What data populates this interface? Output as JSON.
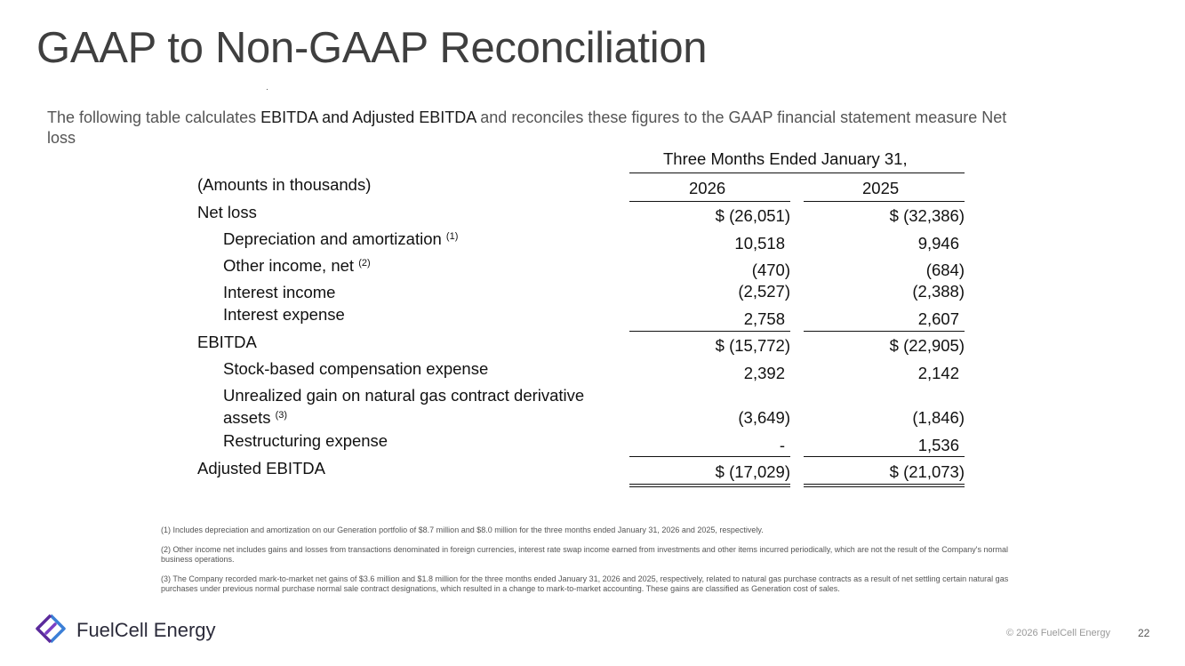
{
  "slide": {
    "title": "GAAP to Non-GAAP Reconciliation",
    "intro_pre": "The following table calculates ",
    "intro_bold": "EBITDA and Adjusted EBITDA",
    "intro_post": " and reconciles these figures to the GAAP financial statement measure Net loss",
    "page_number": "22"
  },
  "table": {
    "period_header": "Three Months Ended January 31,",
    "amounts_label": "(Amounts in thousands)",
    "years": [
      "2026",
      "2025"
    ],
    "rows": [
      {
        "label": "Net loss",
        "note": "",
        "v2026": "$ (26,051)",
        "v2025": "$ (32,386)"
      },
      {
        "label": "Depreciation and amortization",
        "note": "(1)",
        "v2026": "10,518",
        "v2025": "9,946"
      },
      {
        "label": "Other income, net",
        "note": "(2)",
        "v2026": "(470)",
        "v2025": "(684)"
      },
      {
        "label": "Interest income",
        "note": "",
        "v2026": "(2,527)",
        "v2025": "(2,388)"
      },
      {
        "label": "Interest expense",
        "note": "",
        "v2026": "2,758",
        "v2025": "2,607"
      },
      {
        "label": "EBITDA",
        "note": "",
        "v2026": "$ (15,772)",
        "v2025": "$ (22,905)"
      },
      {
        "label": "Stock-based compensation expense",
        "note": "",
        "v2026": "2,392",
        "v2025": "2,142"
      },
      {
        "label": "Unrealized gain on natural gas contract derivative",
        "label_line2": "assets",
        "note": "(3)",
        "v2026": "(3,649)",
        "v2025": "(1,846)"
      },
      {
        "label": "Restructuring expense",
        "note": "",
        "v2026": "-",
        "v2025": "1,536"
      },
      {
        "label": "Adjusted EBITDA",
        "note": "",
        "v2026": "$ (17,029)",
        "v2025": "$ (21,073)"
      }
    ]
  },
  "footnotes": [
    "(1) Includes depreciation and amortization on our Generation portfolio of $8.7 million and $8.0 million for the three months ended January 31, 2026 and 2025, respectively.",
    "(2) Other income net includes gains and losses from transactions denominated in foreign currencies, interest rate swap income earned from investments and other items incurred periodically, which are not the result of the Company's normal business operations.",
    "(3) The Company recorded mark-to-market net gains of $3.6 million and $1.8 million for the three months ended January 31, 2026 and 2025, respectively, related to natural gas purchase contracts as a result of net settling certain natural gas purchases under previous normal purchase normal sale contract designations, which resulted in a change to mark-to-market accounting. These gains are classified as Generation cost of sales."
  ],
  "footer": {
    "brand": "FuelCell Energy",
    "copyright": "© 2026 FuelCell Energy",
    "logo_icon": "fuelcell-logo-icon"
  },
  "colors": {
    "logo_purple": "#5b2a9c",
    "logo_blue": "#3b7fd6",
    "title_gray": "#3f3f3f"
  }
}
